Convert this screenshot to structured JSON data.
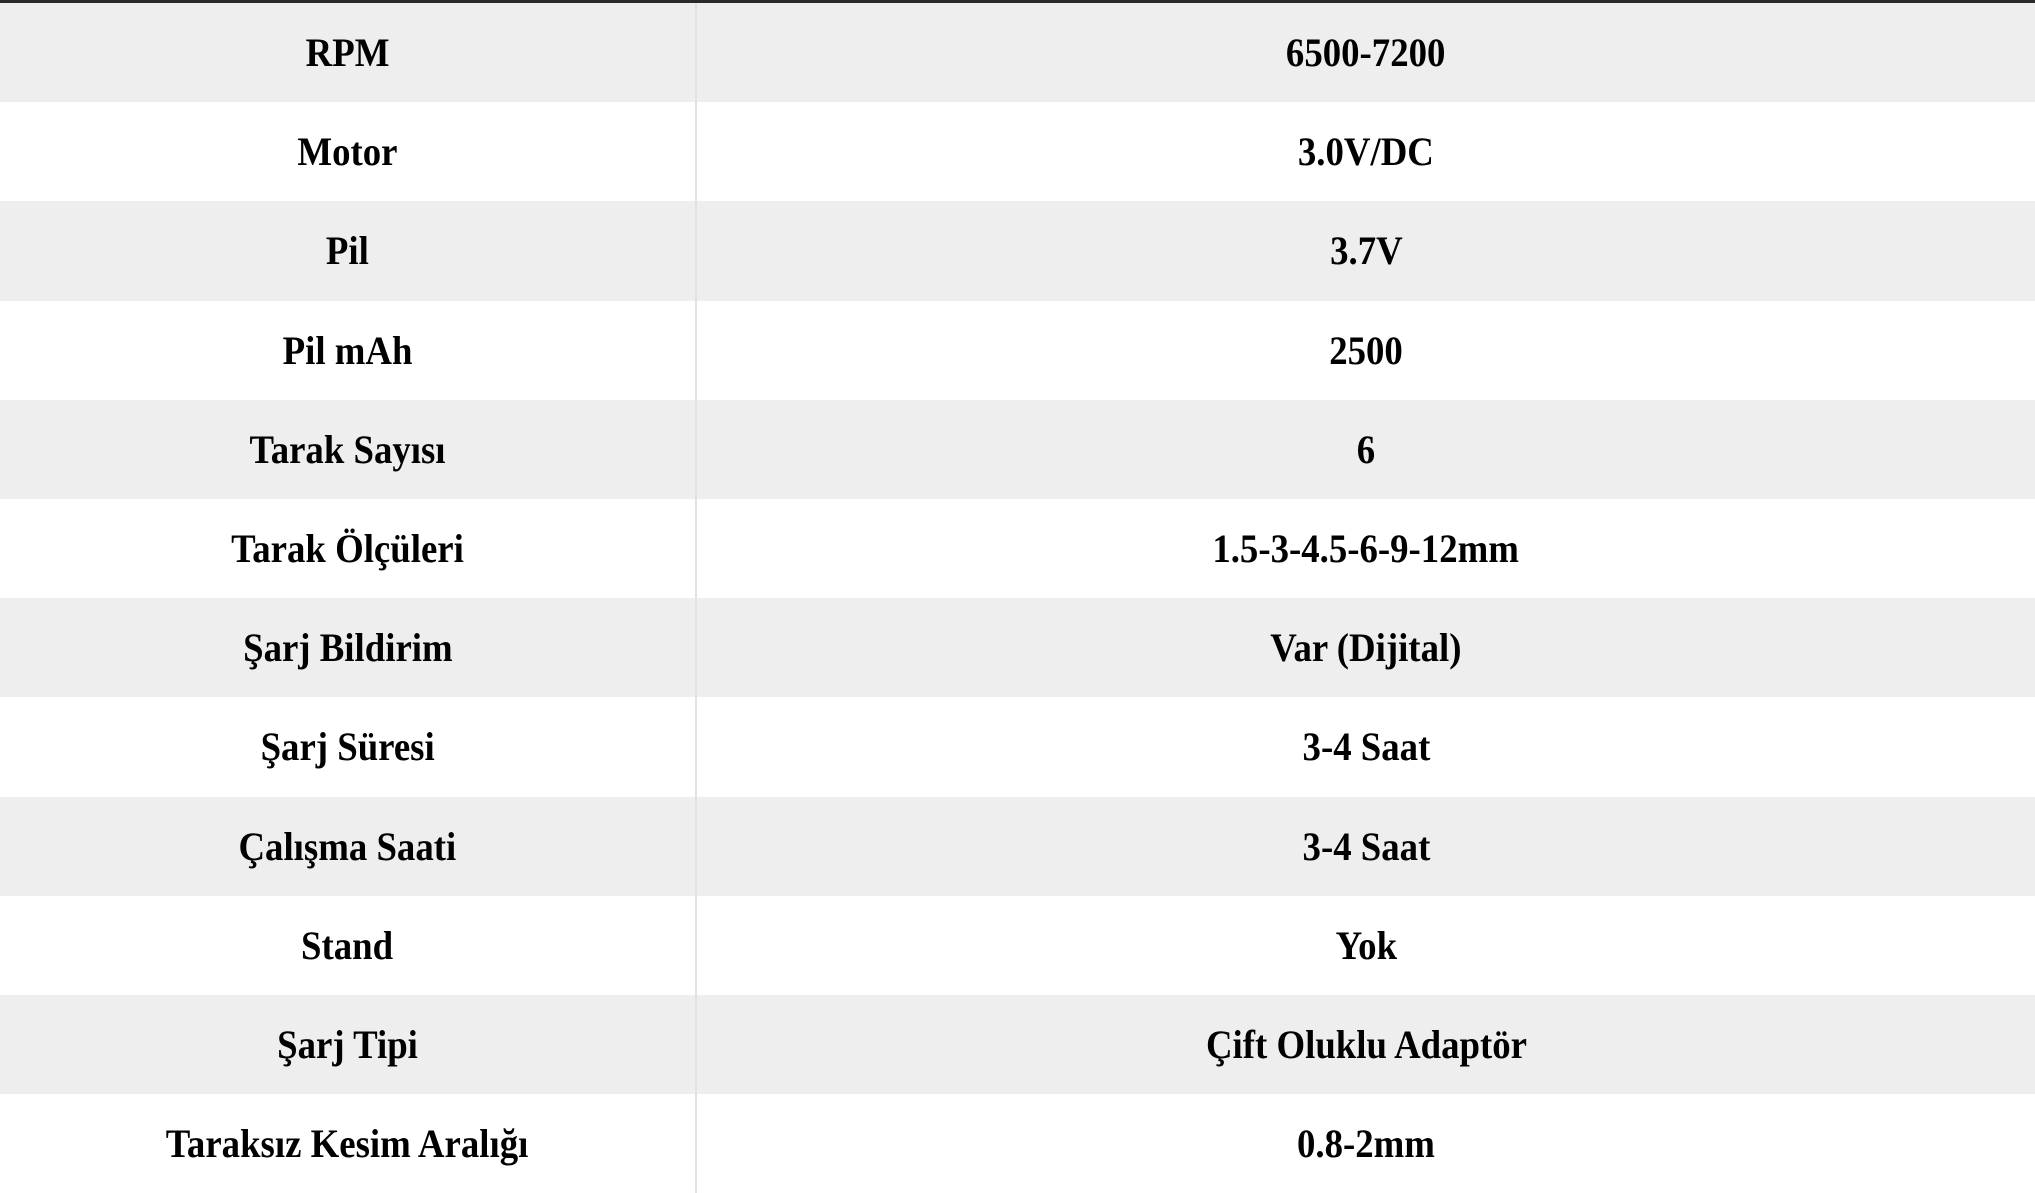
{
  "specs": [
    {
      "label": "RPM",
      "value": "6500-7200"
    },
    {
      "label": "Motor",
      "value": "3.0V/DC"
    },
    {
      "label": "Pil",
      "value": "3.7V"
    },
    {
      "label": "Pil mAh",
      "value": "2500"
    },
    {
      "label": "Tarak Sayısı",
      "value": "6"
    },
    {
      "label": "Tarak Ölçüleri",
      "value": "1.5-3-4.5-6-9-12mm"
    },
    {
      "label": "Şarj Bildirim",
      "value": "Var (Dijital)"
    },
    {
      "label": "Şarj Süresi",
      "value": "3-4 Saat"
    },
    {
      "label": "Çalışma Saati",
      "value": "3-4 Saat"
    },
    {
      "label": "Stand",
      "value": "Yok"
    },
    {
      "label": "Şarj Tipi",
      "value": "Çift Oluklu Adaptör"
    },
    {
      "label": "Taraksız Kesim Aralığı",
      "value": "0.8-2mm"
    }
  ],
  "colors": {
    "row_alt": "#eeeeee",
    "row": "#ffffff",
    "text": "#000000",
    "top_border": "#2a2a2a"
  }
}
